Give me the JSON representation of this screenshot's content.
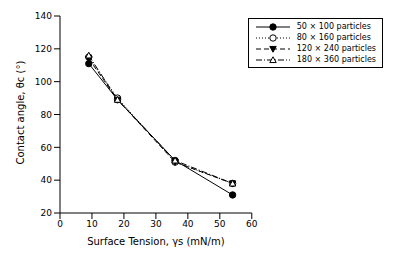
{
  "chart_data": {
    "type": "line",
    "x_label": "Surface Tension, γs (mN/m)",
    "y_label": "Contact angle, θc (°)",
    "x": [
      9,
      18,
      36,
      54
    ],
    "xlim": [
      0,
      60
    ],
    "xticks": [
      0,
      10,
      20,
      30,
      40,
      50,
      60
    ],
    "ylim": [
      20,
      140
    ],
    "yticks": [
      20,
      40,
      60,
      80,
      100,
      120,
      140
    ],
    "grid": false,
    "legend": "upper right",
    "series": [
      {
        "name": "50 × 100 particles",
        "color": "#000000",
        "marker": "circle",
        "line_style": "solid",
        "values": [
          111,
          89,
          52,
          31
        ]
      },
      {
        "name": "80 × 160 particles",
        "color": "#000000",
        "marker": "open_circle",
        "line_style": "dotted",
        "values": [
          115,
          90,
          51,
          38
        ]
      },
      {
        "name": "120 × 240 particles",
        "color": "#000000",
        "marker": "triangle_down",
        "line_style": "dashed",
        "values": [
          114,
          89,
          51,
          38
        ]
      },
      {
        "name": "180 × 360 particles",
        "color": "#000000",
        "marker": "open_triangle",
        "line_style": "dashdot",
        "values": [
          116,
          89,
          52,
          38
        ]
      }
    ]
  }
}
